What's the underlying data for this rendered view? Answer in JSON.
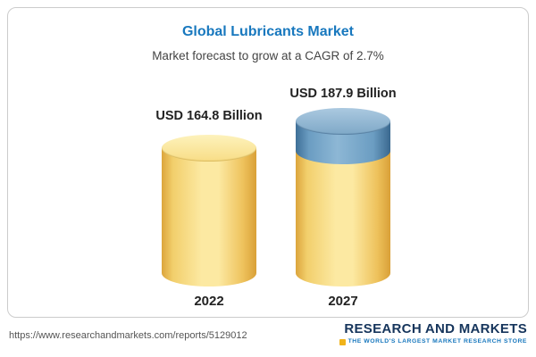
{
  "chart_data": {
    "type": "bar",
    "style": "3d-cylinder",
    "title": "Global Lubricants Market",
    "subtitle": "Market forecast to grow at a CAGR of 2.7%",
    "categories": [
      "2022",
      "2027"
    ],
    "values": [
      164.8,
      187.9
    ],
    "unit": "USD Billion",
    "cagr_percent": 2.7,
    "legend_position": "none",
    "grid": false,
    "bars": [
      {
        "year": "2022",
        "label": "USD 164.8 Billion",
        "value": 164.8,
        "color": "#fce9a2"
      },
      {
        "year": "2027",
        "label": "USD 187.9 Billion",
        "value": 187.9,
        "color": "#fce9a2",
        "cap_color": "#6b9dc2"
      }
    ]
  },
  "colors": {
    "title_blue": "#1878be",
    "cylinder_yellow": "#fce9a2",
    "cylinder_yellow_edge": "#dca53c",
    "cap_blue": "#6b9dc2",
    "frame_border": "#cccccc",
    "logo_navy": "#16355c",
    "logo_accent_gold": "#f0b31a"
  },
  "footer": {
    "url": "https://www.researchandmarkets.com/reports/5129012",
    "logo_line1": "RESEARCH AND MARKETS",
    "logo_line2": "THE WORLD'S LARGEST MARKET RESEARCH STORE"
  }
}
